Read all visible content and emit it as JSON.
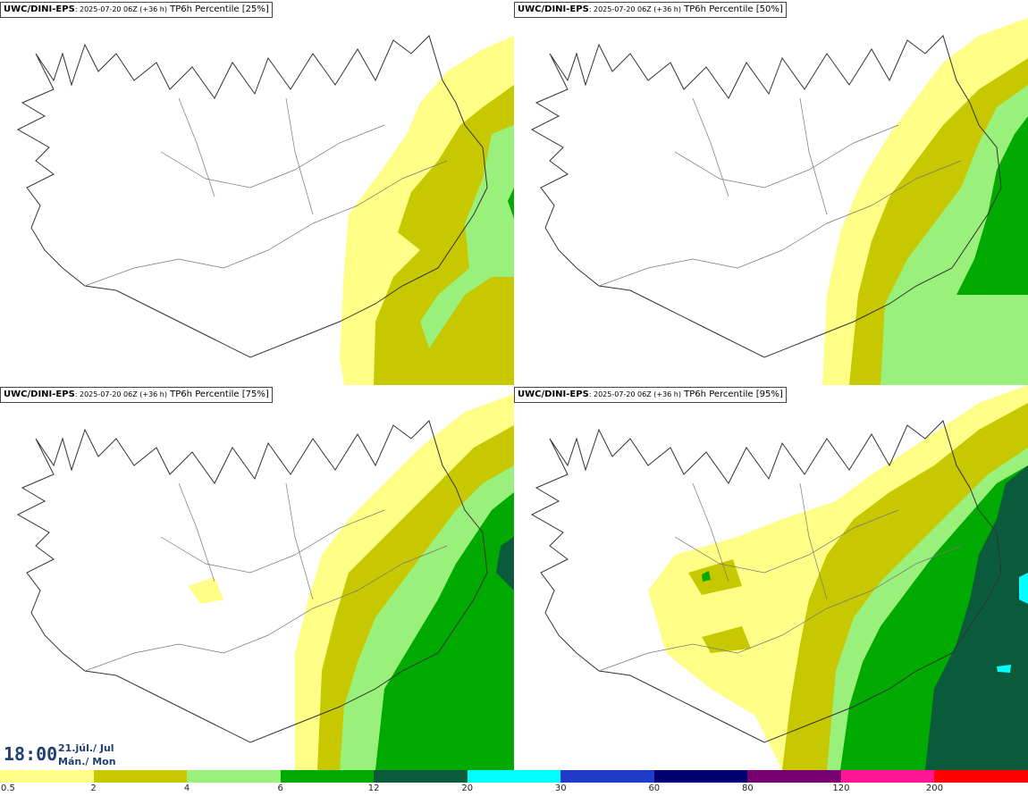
{
  "panels": [
    {
      "id": "p25",
      "model": "UWC/DINI-EPS",
      "meta": ": 2025-07-20 06Z (+36 h)",
      "product": "TP6h Percentile [25%]"
    },
    {
      "id": "p50",
      "model": "UWC/DINI-EPS",
      "meta": ": 2025-07-20 06Z (+36 h)",
      "product": "TP6h Percentile [50%]"
    },
    {
      "id": "p75",
      "model": "UWC/DINI-EPS",
      "meta": ": 2025-07-20 06Z (+36 h)",
      "product": "TP6h Percentile [75%]"
    },
    {
      "id": "p95",
      "model": "UWC/DINI-EPS",
      "meta": ": 2025-07-20 06Z (+36 h)",
      "product": "TP6h Percentile [95%]"
    }
  ],
  "valid_time": {
    "time": "18:00",
    "date": "21.júl./ Jul",
    "weekday": "Mán./ Mon"
  },
  "legend": {
    "labels": [
      "0.5",
      "2",
      "4",
      "6",
      "12",
      "20",
      "30",
      "60",
      "80",
      "120",
      "200"
    ],
    "colors": [
      "#ffff88",
      "#c8c800",
      "#99f07a",
      "#00aa00",
      "#0a5a3c",
      "#00ffff",
      "#1e3cc8",
      "#000070",
      "#780070",
      "#ff1493",
      "#ff0000"
    ]
  }
}
